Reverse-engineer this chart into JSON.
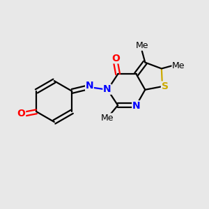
{
  "background_color": "#e8e8e8",
  "bond_color": "#000000",
  "N_color": "#0000ff",
  "O_color": "#ff0000",
  "S_color": "#ccaa00",
  "line_width": 1.6,
  "font_size_atom": 10,
  "figsize": [
    3.0,
    3.0
  ],
  "dpi": 100,
  "xlim": [
    0,
    10
  ],
  "ylim": [
    0,
    10
  ]
}
